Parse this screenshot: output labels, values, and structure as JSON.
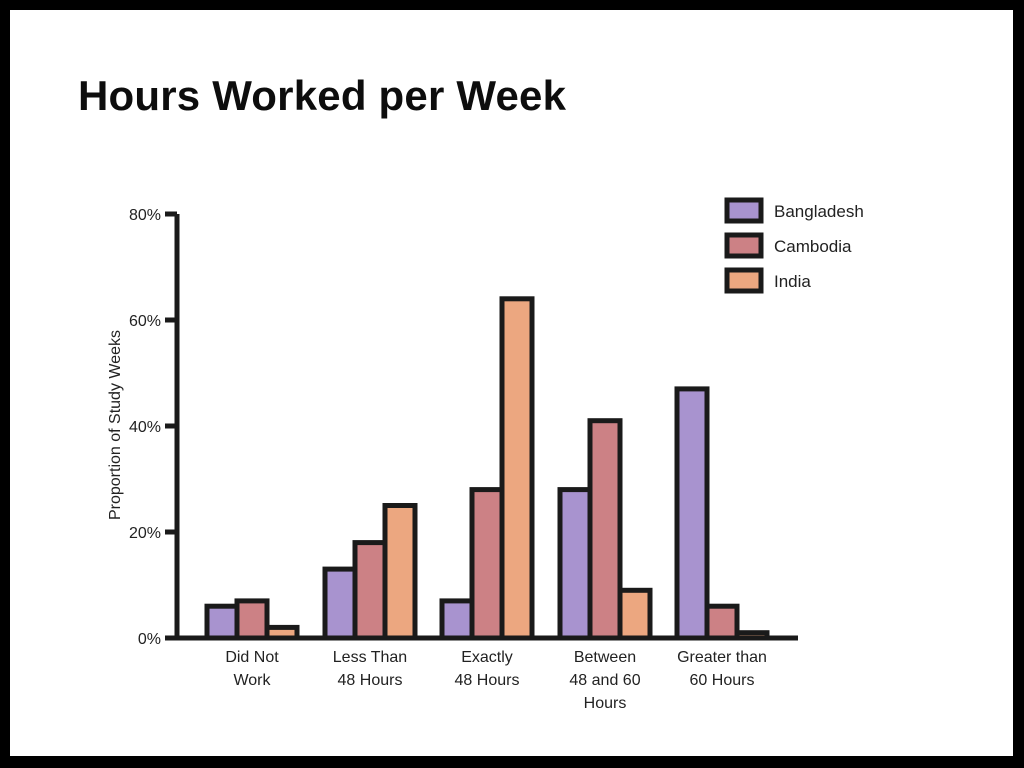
{
  "slide": {
    "title": "Hours Worked per Week"
  },
  "chart_data": {
    "type": "bar",
    "title": "Hours Worked per Week",
    "xlabel": "",
    "ylabel": "Proportion of Study Weeks",
    "ylim": [
      0,
      80
    ],
    "yticks": [
      "0%",
      "20%",
      "40%",
      "60%",
      "80%"
    ],
    "categories": [
      "Did Not\nWork",
      "Less Than\n48 Hours",
      "Exactly\n48 Hours",
      "Between\n48 and 60\nHours",
      "Greater than\n60 Hours"
    ],
    "series": [
      {
        "name": "Bangladesh",
        "color": "#a893cf",
        "values": [
          6,
          13,
          7,
          28,
          47
        ]
      },
      {
        "name": "Cambodia",
        "color": "#cc8185",
        "values": [
          7,
          18,
          28,
          41,
          6
        ]
      },
      {
        "name": "India",
        "color": "#eca780",
        "values": [
          2,
          25,
          64,
          9,
          1
        ]
      }
    ],
    "legend_position": "top-right",
    "grid": false,
    "stroke_color": "#1a1a1a"
  }
}
